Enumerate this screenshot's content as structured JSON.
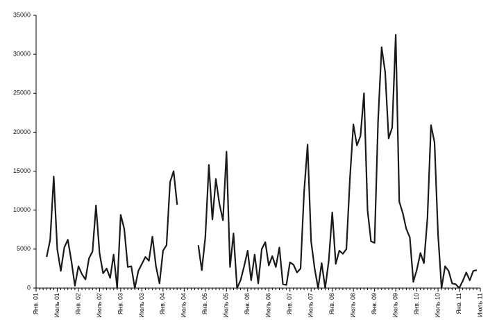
{
  "chart_data": {
    "type": "line",
    "categories": [
      "Янв. 01",
      null,
      null,
      null,
      null,
      null,
      "Июль 01",
      null,
      null,
      null,
      null,
      null,
      "Янв. 02",
      null,
      null,
      null,
      null,
      null,
      "Июль 02",
      null,
      null,
      null,
      null,
      null,
      "Янв. 03",
      null,
      null,
      null,
      null,
      null,
      "Июль 03",
      null,
      null,
      null,
      null,
      null,
      "Янв. 04",
      null,
      null,
      null,
      null,
      null,
      "Июль 04",
      null,
      null,
      null,
      null,
      null,
      "Янв. 05",
      null,
      null,
      null,
      null,
      null,
      "Июль 05",
      null,
      null,
      null,
      null,
      null,
      "Янв. 06",
      null,
      null,
      null,
      null,
      null,
      "Июль 06",
      null,
      null,
      null,
      null,
      null,
      "Янв. 07",
      null,
      null,
      null,
      null,
      null,
      "Июль 07",
      null,
      null,
      null,
      null,
      null,
      "Янв. 08",
      null,
      null,
      null,
      null,
      null,
      "Июль 08",
      null,
      null,
      null,
      null,
      null,
      "Янв. 09",
      null,
      null,
      null,
      null,
      null,
      "Июль 09",
      null,
      null,
      null,
      null,
      null,
      "Янв. 10",
      null,
      null,
      null,
      null,
      null,
      "Июль 10",
      null,
      null,
      null,
      null,
      null,
      "Янв. 11",
      null,
      null,
      null,
      null,
      null,
      "Июль 11"
    ],
    "series": [
      {
        "color": "#1a1a1a",
        "values": [
          null,
          null,
          null,
          4000,
          6200,
          14300,
          5000,
          2200,
          5200,
          6200,
          3500,
          300,
          2800,
          1800,
          1100,
          3800,
          4700,
          10600,
          4500,
          1900,
          2500,
          1300,
          4300,
          0,
          9400,
          7600,
          2700,
          2800,
          0,
          2200,
          3100,
          4000,
          3500,
          6600,
          2800,
          600,
          4800,
          5500,
          13600,
          15000,
          10700,
          null,
          null,
          null,
          null,
          null,
          5500,
          2300,
          6500,
          15800,
          8800,
          14000,
          10800,
          8700,
          17500,
          2700,
          7000,
          0,
          1000,
          2800,
          4800,
          1000,
          4300,
          600,
          5000,
          5900,
          2900,
          4100,
          2700,
          5200,
          500,
          400,
          3300,
          3000,
          2000,
          2500,
          12200,
          18400,
          6000,
          2500,
          0,
          3200,
          0,
          3500,
          9700,
          3100,
          4800,
          4400,
          5000,
          14000,
          21000,
          18300,
          19500,
          25000,
          10000,
          6000,
          5800,
          21500,
          30900,
          27700,
          19200,
          20600,
          32500,
          11100,
          9600,
          7600,
          6500,
          800,
          2400,
          4500,
          3200,
          9000,
          20900,
          18700,
          7000,
          0,
          2800,
          2200,
          600,
          500,
          0,
          900,
          2000,
          1000,
          2200,
          2300,
          null
        ]
      }
    ],
    "ylim": [
      0,
      35000
    ],
    "yticks": [
      0,
      5000,
      10000,
      15000,
      20000,
      25000,
      30000,
      35000
    ],
    "grid": false
  }
}
